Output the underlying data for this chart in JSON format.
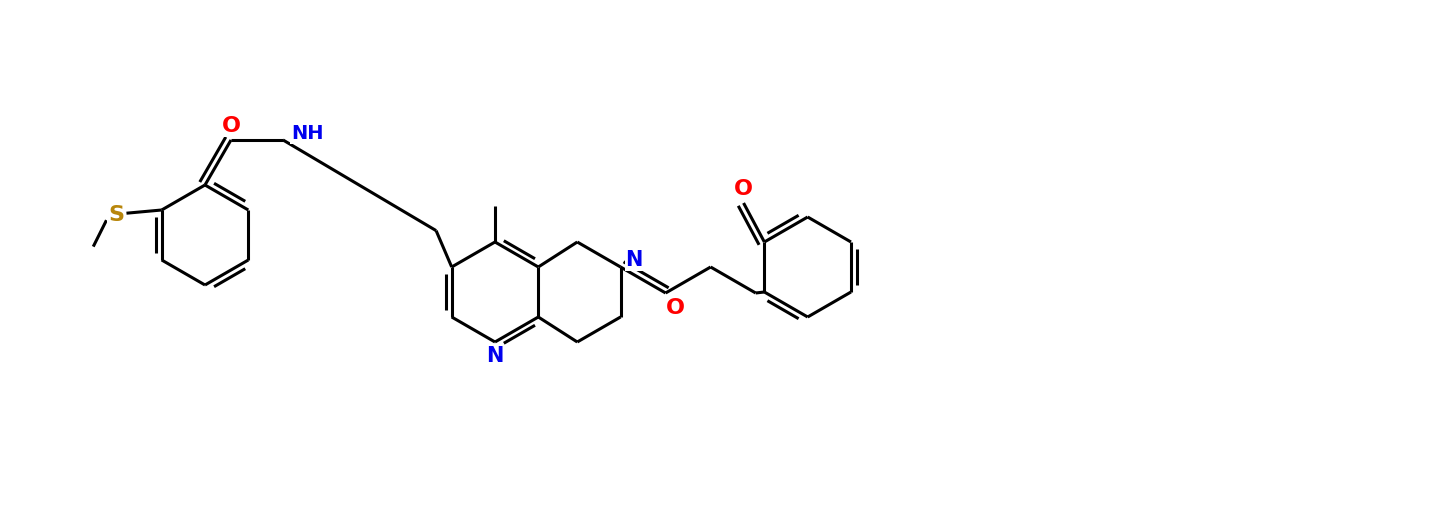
{
  "background_color": "#ffffff",
  "bond_color": "#000000",
  "atom_colors": {
    "N": "#0000ee",
    "O": "#ff0000",
    "S": "#b8860b"
  },
  "figsize": [
    14.48,
    5.07
  ],
  "dpi": 100,
  "lw": 2.2,
  "fs": 15
}
